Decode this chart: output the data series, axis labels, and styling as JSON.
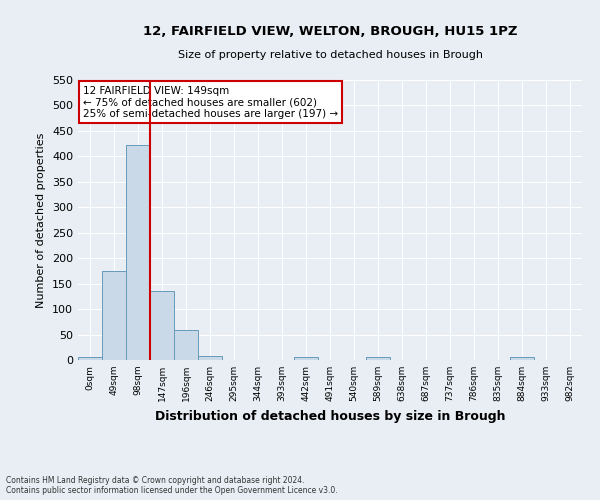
{
  "title": "12, FAIRFIELD VIEW, WELTON, BROUGH, HU15 1PZ",
  "subtitle": "Size of property relative to detached houses in Brough",
  "xlabel": "Distribution of detached houses by size in Brough",
  "ylabel": "Number of detached properties",
  "bin_labels": [
    "0sqm",
    "49sqm",
    "98sqm",
    "147sqm",
    "196sqm",
    "246sqm",
    "295sqm",
    "344sqm",
    "393sqm",
    "442sqm",
    "491sqm",
    "540sqm",
    "589sqm",
    "638sqm",
    "687sqm",
    "737sqm",
    "786sqm",
    "835sqm",
    "884sqm",
    "933sqm",
    "982sqm"
  ],
  "bar_values": [
    5,
    175,
    422,
    135,
    58,
    7,
    0,
    0,
    0,
    5,
    0,
    0,
    5,
    0,
    0,
    0,
    0,
    0,
    5,
    0,
    0
  ],
  "bar_color": "#c9d9e8",
  "bar_edge_color": "#6699bb",
  "property_line_x": 3,
  "property_line_color": "#cc0000",
  "ylim": [
    0,
    550
  ],
  "yticks": [
    0,
    50,
    100,
    150,
    200,
    250,
    300,
    350,
    400,
    450,
    500,
    550
  ],
  "annotation_title": "12 FAIRFIELD VIEW: 149sqm",
  "annotation_line1": "← 75% of detached houses are smaller (602)",
  "annotation_line2": "25% of semi-detached houses are larger (197) →",
  "annotation_box_color": "#cc0000",
  "footer_line1": "Contains HM Land Registry data © Crown copyright and database right 2024.",
  "footer_line2": "Contains public sector information licensed under the Open Government Licence v3.0.",
  "background_color": "#e8eef4",
  "plot_bg_color": "#e8eef4"
}
